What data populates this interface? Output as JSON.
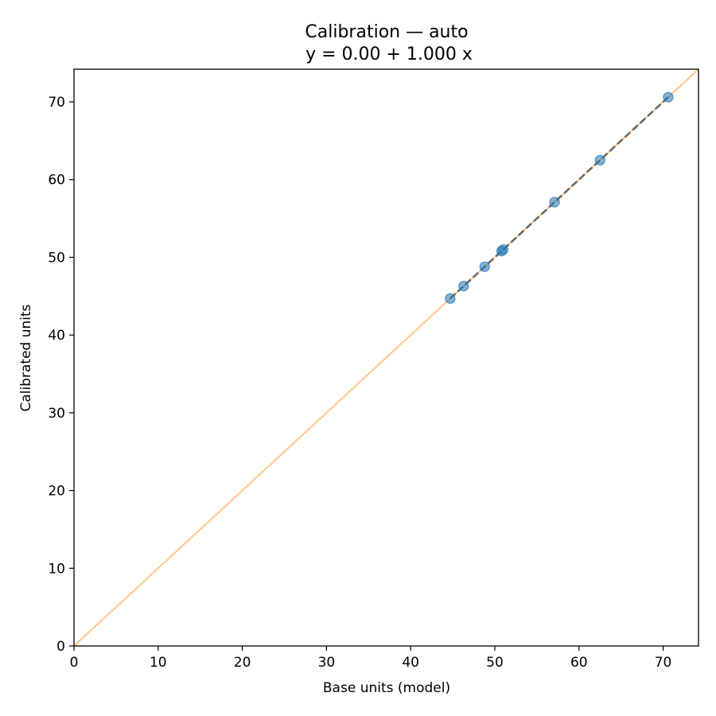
{
  "chart_data": {
    "type": "scatter",
    "title": "Calibration — auto",
    "subtitle": "y = 0.00 + 1.000 x",
    "xlabel": "Base units (model)",
    "ylabel": "Calibrated units",
    "xlim": [
      0,
      74.2
    ],
    "ylim": [
      0,
      74.2
    ],
    "xticks": [
      0,
      10,
      20,
      30,
      40,
      50,
      60,
      70
    ],
    "yticks": [
      0,
      10,
      20,
      30,
      40,
      50,
      60,
      70
    ],
    "grid": false,
    "legend": "none",
    "series": [
      {
        "kind": "points",
        "color": "#1f77b4",
        "x": [
          44.7,
          46.3,
          48.8,
          50.8,
          51.0,
          57.1,
          62.5,
          70.6
        ],
        "y": [
          44.7,
          46.3,
          48.8,
          50.8,
          51.0,
          57.1,
          62.5,
          70.6
        ]
      },
      {
        "kind": "line",
        "style": "dashed",
        "color": "#555555",
        "x": [
          44.7,
          70.6
        ],
        "y": [
          44.7,
          70.6
        ]
      },
      {
        "kind": "line",
        "style": "solid",
        "color": "#ffbb78",
        "x": [
          0,
          74.2
        ],
        "y": [
          0,
          74.2
        ]
      }
    ]
  }
}
